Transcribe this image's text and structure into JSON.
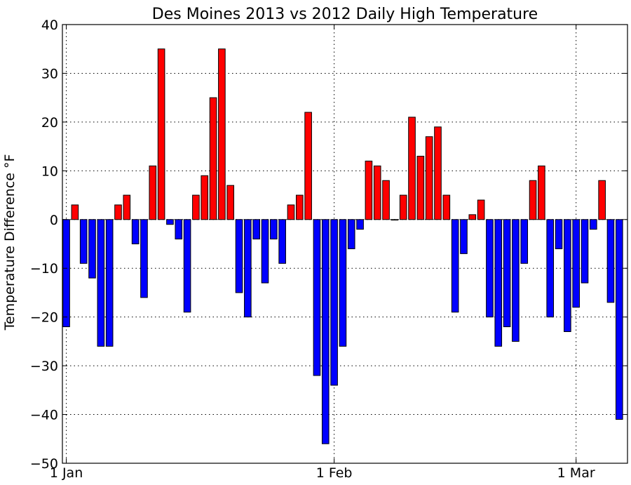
{
  "chart_data": {
    "type": "bar",
    "title": "Des Moines 2013 vs 2012 Daily High Temperature",
    "xlabel": "",
    "ylabel": "Temperature Difference °F",
    "ylim": [
      -50,
      40
    ],
    "yticks": [
      40,
      30,
      20,
      10,
      0,
      -10,
      -20,
      -30,
      -40,
      -50
    ],
    "ytick_labels": [
      "40",
      "30",
      "20",
      "10",
      "0",
      "−10",
      "−20",
      "−30",
      "−40",
      "−50"
    ],
    "xticks": [
      {
        "label": "1 Jan",
        "day": 1
      },
      {
        "label": "1 Feb",
        "day": 32
      },
      {
        "label": "1 Mar",
        "day": 60
      }
    ],
    "grid": true,
    "positive_color": "#ff0000",
    "negative_color": "#0000ff",
    "days": [
      1,
      2,
      3,
      4,
      5,
      6,
      7,
      8,
      9,
      10,
      11,
      12,
      13,
      14,
      15,
      16,
      17,
      18,
      19,
      20,
      21,
      22,
      23,
      24,
      25,
      26,
      27,
      28,
      29,
      30,
      31,
      32,
      33,
      34,
      35,
      36,
      37,
      38,
      39,
      40,
      41,
      42,
      43,
      44,
      45,
      46,
      47,
      48,
      49,
      50,
      51,
      52,
      53,
      54,
      55,
      56,
      57,
      58,
      59,
      60,
      61,
      62,
      63,
      64,
      65
    ],
    "values": [
      -22,
      3,
      -9,
      -12,
      -26,
      -26,
      3,
      5,
      -5,
      -16,
      11,
      35,
      -1,
      -4,
      -19,
      5,
      9,
      25,
      35,
      7,
      -15,
      -20,
      -4,
      -13,
      -4,
      -9,
      3,
      5,
      22,
      -32,
      -46,
      -34,
      -26,
      -6,
      -2,
      12,
      11,
      8,
      0,
      5,
      21,
      13,
      17,
      19,
      5,
      -19,
      -7,
      1,
      4,
      -20,
      -26,
      -22,
      -25,
      -9,
      8,
      11,
      -20,
      -6,
      -23,
      -18,
      -13,
      -2,
      8,
      -17,
      -41
    ]
  }
}
